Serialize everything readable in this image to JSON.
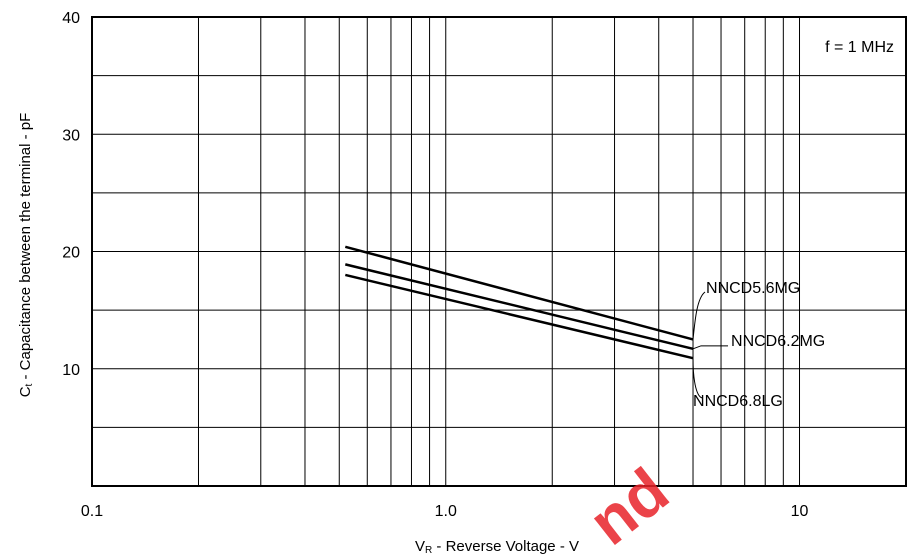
{
  "chart_data": {
    "type": "line",
    "xlabel": {
      "main": "V",
      "sub": "R",
      "rest": " - Reverse Voltage - V"
    },
    "ylabel": {
      "main": "C",
      "sub": "t",
      "rest": " - Capacitance between the terminal - pF"
    },
    "x_scale": "log",
    "xlim": [
      0.1,
      20
    ],
    "ylim": [
      0,
      40
    ],
    "x_ticks": [
      {
        "value": 0.1,
        "label": "0.1"
      },
      {
        "value": 1,
        "label": "1.0"
      },
      {
        "value": 10,
        "label": "10"
      }
    ],
    "y_ticks": [
      {
        "value": 10,
        "label": "10"
      },
      {
        "value": 20,
        "label": "20"
      },
      {
        "value": 30,
        "label": "30"
      },
      {
        "value": 40,
        "label": "40"
      }
    ],
    "grid": true,
    "annotation": "f = 1 MHz",
    "series": [
      {
        "name": "NNCD5.6MG",
        "x": [
          0.52,
          5.0
        ],
        "y": [
          20.4,
          12.5
        ]
      },
      {
        "name": "NNCD6.2MG",
        "x": [
          0.52,
          5.0
        ],
        "y": [
          18.9,
          11.7
        ]
      },
      {
        "name": "NNCD6.8LG",
        "x": [
          0.52,
          5.0
        ],
        "y": [
          18.0,
          10.9
        ]
      }
    ],
    "watermark": "nd"
  }
}
